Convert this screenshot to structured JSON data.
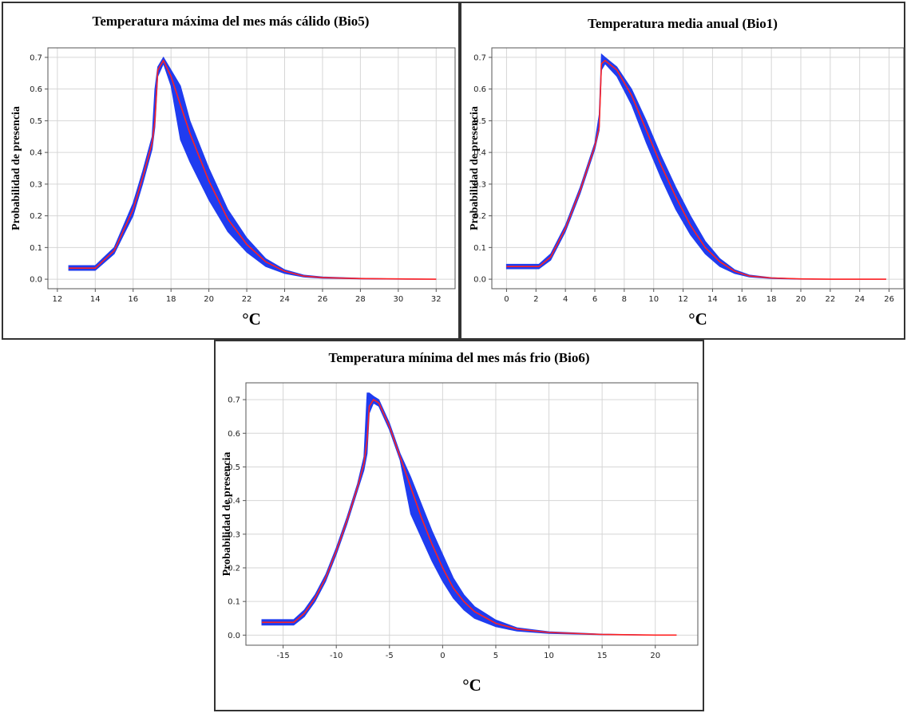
{
  "chart_data": [
    {
      "type": "line",
      "title": "Temperatura máxima del mes más cálido (Bio5)",
      "xlabel": "°C",
      "ylabel": "Probabilidad de presencia",
      "xlim": [
        11.5,
        33
      ],
      "ylim": [
        -0.03,
        0.73
      ],
      "xticks": [
        12,
        14,
        16,
        18,
        20,
        22,
        24,
        26,
        28,
        30,
        32
      ],
      "yticks": [
        0.0,
        0.1,
        0.2,
        0.3,
        0.4,
        0.5,
        0.6,
        0.7
      ],
      "grid": true,
      "series": [
        {
          "x": [
            12.6,
            14.0,
            15.0,
            16.0,
            16.5,
            17.0,
            17.15,
            17.3,
            17.6,
            18.0,
            18.5,
            19.0,
            20.0,
            21.0,
            22.0,
            23.0,
            24.0,
            25.0,
            26.0,
            28.0,
            30.0,
            32.0
          ],
          "y": [
            0.035,
            0.035,
            0.09,
            0.22,
            0.32,
            0.43,
            0.5,
            0.66,
            0.69,
            0.64,
            0.55,
            0.46,
            0.31,
            0.19,
            0.11,
            0.055,
            0.025,
            0.01,
            0.005,
            0.002,
            0.001,
            0.0
          ],
          "lower": [
            0.028,
            0.028,
            0.08,
            0.2,
            0.3,
            0.41,
            0.48,
            0.64,
            0.68,
            0.61,
            0.44,
            0.37,
            0.25,
            0.15,
            0.085,
            0.04,
            0.018,
            0.007,
            0.003,
            0.001,
            0.0,
            0.0
          ],
          "upper": [
            0.043,
            0.043,
            0.1,
            0.24,
            0.34,
            0.45,
            0.6,
            0.67,
            0.7,
            0.66,
            0.61,
            0.5,
            0.35,
            0.22,
            0.13,
            0.065,
            0.03,
            0.013,
            0.007,
            0.003,
            0.001,
            0.0
          ]
        }
      ]
    },
    {
      "type": "line",
      "title": "Temperatura media anual (Bio1)",
      "xlabel": "°C",
      "ylabel": "Probabilidad de presencia",
      "xlim": [
        -1,
        27
      ],
      "ylim": [
        -0.03,
        0.73
      ],
      "xticks": [
        0,
        2,
        4,
        6,
        8,
        10,
        12,
        14,
        16,
        18,
        20,
        22,
        24,
        26
      ],
      "yticks": [
        0.0,
        0.1,
        0.2,
        0.3,
        0.4,
        0.5,
        0.6,
        0.7
      ],
      "grid": true,
      "series": [
        {
          "x": [
            0.0,
            2.2,
            3.0,
            4.0,
            5.0,
            6.0,
            6.3,
            6.45,
            6.7,
            7.5,
            8.5,
            9.5,
            10.5,
            11.5,
            12.5,
            13.5,
            14.5,
            15.5,
            16.5,
            18.0,
            20.0,
            22.0,
            24.0,
            25.8
          ],
          "y": [
            0.04,
            0.04,
            0.07,
            0.16,
            0.28,
            0.42,
            0.48,
            0.68,
            0.69,
            0.66,
            0.58,
            0.47,
            0.36,
            0.26,
            0.17,
            0.1,
            0.055,
            0.025,
            0.01,
            0.004,
            0.001,
            0.0,
            0.0,
            0.0
          ],
          "lower": [
            0.033,
            0.033,
            0.06,
            0.15,
            0.27,
            0.41,
            0.47,
            0.66,
            0.68,
            0.64,
            0.55,
            0.43,
            0.32,
            0.22,
            0.14,
            0.08,
            0.04,
            0.018,
            0.007,
            0.002,
            0.0,
            0.0,
            0.0,
            0.0
          ],
          "upper": [
            0.047,
            0.047,
            0.08,
            0.17,
            0.29,
            0.43,
            0.52,
            0.71,
            0.7,
            0.67,
            0.6,
            0.5,
            0.39,
            0.29,
            0.2,
            0.12,
            0.065,
            0.03,
            0.013,
            0.005,
            0.001,
            0.0,
            0.0,
            0.0
          ]
        }
      ]
    },
    {
      "type": "line",
      "title": "Temperatura mínima del mes más frio (Bio6)",
      "xlabel": "°C",
      "ylabel": "Probabilidad de presencia",
      "xlim": [
        -18.5,
        24
      ],
      "ylim": [
        -0.03,
        0.75
      ],
      "xticks": [
        -15,
        -10,
        -5,
        0,
        5,
        10,
        15,
        20
      ],
      "yticks": [
        0.0,
        0.1,
        0.2,
        0.3,
        0.4,
        0.5,
        0.6,
        0.7
      ],
      "grid": true,
      "series": [
        {
          "x": [
            -17.0,
            -14.0,
            -13.0,
            -12.0,
            -11.0,
            -10.0,
            -9.0,
            -8.0,
            -7.4,
            -7.1,
            -6.9,
            -6.5,
            -6.0,
            -5.0,
            -4.0,
            -3.0,
            -2.0,
            -1.0,
            0.0,
            1.0,
            2.0,
            3.0,
            5.0,
            7.0,
            10.0,
            15.0,
            20.0,
            22.0
          ],
          "y": [
            0.038,
            0.038,
            0.065,
            0.11,
            0.17,
            0.25,
            0.34,
            0.44,
            0.51,
            0.58,
            0.68,
            0.7,
            0.69,
            0.62,
            0.53,
            0.44,
            0.35,
            0.27,
            0.2,
            0.14,
            0.1,
            0.07,
            0.035,
            0.018,
            0.008,
            0.002,
            0.0,
            0.0
          ],
          "lower": [
            0.03,
            0.03,
            0.055,
            0.1,
            0.16,
            0.24,
            0.33,
            0.43,
            0.49,
            0.54,
            0.66,
            0.69,
            0.68,
            0.61,
            0.52,
            0.36,
            0.29,
            0.22,
            0.16,
            0.11,
            0.075,
            0.05,
            0.025,
            0.012,
            0.005,
            0.001,
            0.0,
            0.0
          ],
          "upper": [
            0.046,
            0.046,
            0.075,
            0.12,
            0.18,
            0.26,
            0.35,
            0.45,
            0.53,
            0.72,
            0.72,
            0.71,
            0.7,
            0.63,
            0.54,
            0.47,
            0.39,
            0.31,
            0.24,
            0.17,
            0.12,
            0.085,
            0.045,
            0.022,
            0.01,
            0.003,
            0.0,
            0.0
          ]
        }
      ]
    }
  ]
}
